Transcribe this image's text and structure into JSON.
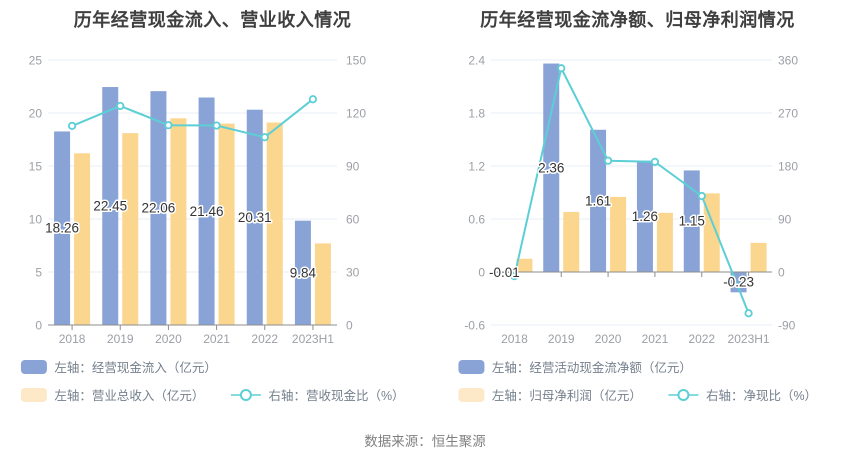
{
  "source": "数据来源：恒生聚源",
  "colors": {
    "bar_blue": "#89A3D6",
    "bar_yellow": "#FBD68F",
    "legend_yellow": "#FDE9C8",
    "line": "#5CCFD6",
    "grid": "#E7EDF6",
    "axis_line": "#8C8C8C",
    "axis_text": "#9CA0A6",
    "value_label": "#333333",
    "title": "#3F3F3F",
    "legend_text": "#75808D",
    "source_text": "#808080"
  },
  "chart_data": [
    {
      "type": "bar",
      "title": "历年经营现金流入、营业收入情况",
      "categories": [
        "2018",
        "2019",
        "2020",
        "2021",
        "2022",
        "2023H1"
      ],
      "left_axis": {
        "min": 0,
        "max": 25,
        "ticks": [
          25,
          20,
          15,
          10,
          5,
          0
        ]
      },
      "right_axis": {
        "min": 0,
        "max": 150,
        "ticks": [
          150,
          120,
          90,
          60,
          30,
          0
        ]
      },
      "grid": true,
      "legend_position": "bottom",
      "series": [
        {
          "name": "左轴：经营现金流入（亿元）",
          "type": "bar",
          "axis": "left",
          "values": [
            18.26,
            22.45,
            22.06,
            21.46,
            20.31,
            9.84
          ],
          "labels": [
            "18.26",
            "22.45",
            "22.06",
            "21.46",
            "20.31",
            "9.84"
          ]
        },
        {
          "name": "左轴：营业总收入（亿元）",
          "type": "bar",
          "axis": "left",
          "values": [
            16.2,
            18.1,
            19.5,
            19.0,
            19.1,
            7.7
          ]
        },
        {
          "name": "右轴：营收现金比（%）",
          "type": "line",
          "axis": "right",
          "values": [
            112.7,
            124.0,
            113.1,
            112.9,
            106.3,
            127.8
          ]
        }
      ]
    },
    {
      "type": "bar",
      "title": "历年经营现金流净额、归母净利润情况",
      "categories": [
        "2018",
        "2019",
        "2020",
        "2021",
        "2022",
        "2023H1"
      ],
      "left_axis": {
        "min": -0.6,
        "max": 2.4,
        "ticks": [
          2.4,
          1.8,
          1.2,
          0.6,
          0,
          -0.6
        ]
      },
      "right_axis": {
        "min": -90,
        "max": 360,
        "ticks": [
          360,
          270,
          180,
          90,
          0,
          -90
        ]
      },
      "grid": true,
      "legend_position": "bottom",
      "series": [
        {
          "name": "左轴：经营活动现金流净额（亿元）",
          "type": "bar",
          "axis": "left",
          "values": [
            -0.01,
            2.36,
            1.61,
            1.26,
            1.15,
            -0.23
          ],
          "labels": [
            "-0.01",
            "2.36",
            "1.61",
            "1.26",
            "1.15",
            "-0.23"
          ]
        },
        {
          "name": "左轴：归母净利润（亿元）",
          "type": "bar",
          "axis": "left",
          "values": [
            0.15,
            0.68,
            0.85,
            0.67,
            0.89,
            0.33
          ]
        },
        {
          "name": "右轴：净现比（%）",
          "type": "line",
          "axis": "right",
          "values": [
            -7,
            346,
            189,
            187,
            129,
            -70
          ]
        }
      ]
    }
  ]
}
